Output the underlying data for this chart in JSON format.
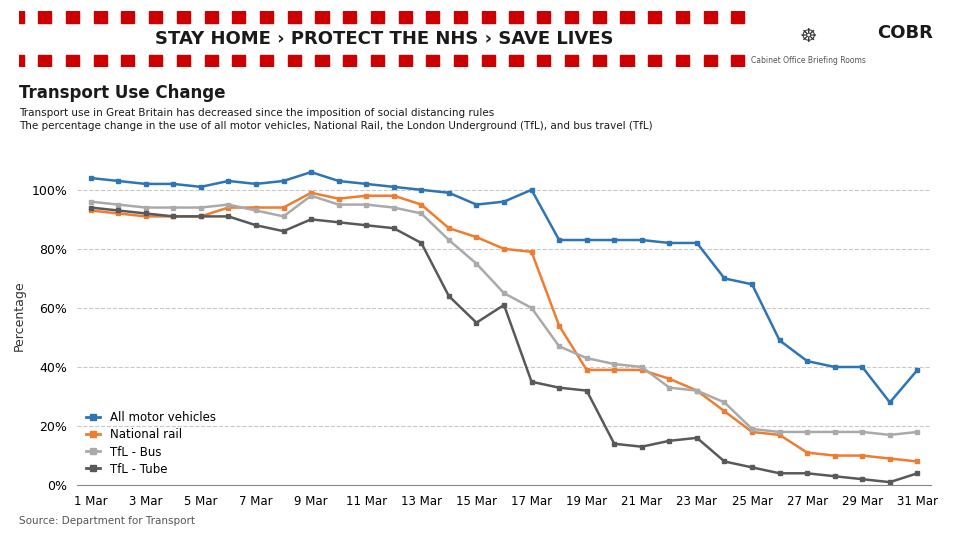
{
  "title": "Transport Use Change",
  "subtitle1": "Transport use in Great Britain has decreased since the imposition of social distancing rules",
  "subtitle2": "The percentage change in the use of all motor vehicles, National Rail, the London Underground (TfL), and bus travel (TfL)",
  "source": "Source: Department for Transport",
  "banner_text": "STAY HOME › PROTECT THE NHS › SAVE LIVES",
  "cobr_text": "COBR",
  "cobr_sub": "Cabinet Office Briefing Rooms",
  "ylabel": "Percentage",
  "ylim": [
    0,
    115
  ],
  "yticks": [
    0,
    20,
    40,
    60,
    80,
    100
  ],
  "ytick_labels": [
    "0%",
    "20%",
    "40%",
    "60%",
    "80%",
    "100%"
  ],
  "x_tick_labels": [
    "1 Mar",
    "3 Mar",
    "5 Mar",
    "7 Mar",
    "9 Mar",
    "11 Mar",
    "13 Mar",
    "15 Mar",
    "17 Mar",
    "19 Mar",
    "21 Mar",
    "23 Mar",
    "25 Mar",
    "27 Mar",
    "29 Mar",
    "31 Mar"
  ],
  "x_tick_positions": [
    0,
    2,
    4,
    6,
    8,
    10,
    12,
    14,
    16,
    18,
    20,
    22,
    24,
    26,
    28,
    30
  ],
  "motor_vehicles": [
    104,
    103,
    102,
    102,
    101,
    103,
    102,
    103,
    106,
    103,
    102,
    101,
    100,
    99,
    95,
    96,
    100,
    83,
    83,
    83,
    83,
    82,
    82,
    70,
    68,
    49,
    42,
    40,
    40,
    28,
    39
  ],
  "national_rail": [
    93,
    92,
    91,
    91,
    91,
    94,
    94,
    94,
    99,
    97,
    98,
    98,
    95,
    87,
    84,
    80,
    79,
    54,
    39,
    39,
    39,
    36,
    32,
    25,
    18,
    17,
    11,
    10,
    10,
    9,
    8
  ],
  "tfl_bus": [
    96,
    95,
    94,
    94,
    94,
    95,
    93,
    91,
    98,
    95,
    95,
    94,
    92,
    83,
    75,
    65,
    60,
    47,
    43,
    41,
    40,
    33,
    32,
    28,
    19,
    18,
    18,
    18,
    18,
    17,
    18
  ],
  "tfl_tube": [
    94,
    93,
    92,
    91,
    91,
    91,
    88,
    86,
    90,
    89,
    88,
    87,
    82,
    64,
    55,
    61,
    35,
    33,
    32,
    14,
    13,
    15,
    16,
    8,
    6,
    4,
    4,
    3,
    2,
    1,
    4
  ],
  "colors": {
    "motor_vehicles": "#2E75B6",
    "national_rail": "#ED7D31",
    "tfl_bus": "#AAAAAA",
    "tfl_tube": "#595959"
  },
  "legend_labels": [
    "All motor vehicles",
    "National rail",
    "TfL - Bus",
    "TfL - Tube"
  ],
  "background_color": "#FFFFFF",
  "banner_bg": "#FFE600",
  "banner_text_color": "#1A1A1A",
  "grid_color": "#BBBBBB"
}
